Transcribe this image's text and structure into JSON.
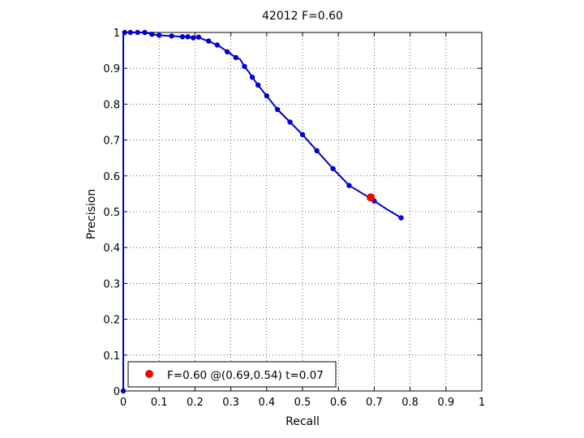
{
  "chart_data": {
    "type": "line",
    "title": "42012 F=0.60",
    "xlabel": "Recall",
    "ylabel": "Precision",
    "xlim": [
      0,
      1
    ],
    "ylim": [
      0,
      1
    ],
    "grid": true,
    "legend_placement": "bottom-left",
    "x_ticks": [
      "0",
      "0.1",
      "0.2",
      "0.3",
      "0.4",
      "0.5",
      "0.6",
      "0.7",
      "0.8",
      "0.9",
      "1"
    ],
    "y_ticks": [
      "0",
      "0.1",
      "0.2",
      "0.3",
      "0.4",
      "0.5",
      "0.6",
      "0.7",
      "0.8",
      "0.9",
      "1"
    ],
    "series": [
      {
        "color": "#0000cc",
        "points": [
          [
            0.0,
            0.0
          ],
          [
            0.0,
            1.0
          ],
          [
            0.004,
            1.0
          ],
          [
            0.01,
            1.0
          ],
          [
            0.02,
            1.0
          ],
          [
            0.04,
            1.0
          ],
          [
            0.06,
            1.0
          ],
          [
            0.08,
            0.995
          ],
          [
            0.1,
            0.992
          ],
          [
            0.135,
            0.99
          ],
          [
            0.165,
            0.988
          ],
          [
            0.18,
            0.988
          ],
          [
            0.195,
            0.985
          ],
          [
            0.21,
            0.987
          ],
          [
            0.225,
            0.98
          ],
          [
            0.238,
            0.976
          ],
          [
            0.25,
            0.97
          ],
          [
            0.262,
            0.965
          ],
          [
            0.278,
            0.955
          ],
          [
            0.29,
            0.946
          ],
          [
            0.3,
            0.94
          ],
          [
            0.314,
            0.93
          ],
          [
            0.326,
            0.925
          ],
          [
            0.338,
            0.905
          ],
          [
            0.35,
            0.89
          ],
          [
            0.36,
            0.875
          ],
          [
            0.376,
            0.853
          ],
          [
            0.4,
            0.823
          ],
          [
            0.43,
            0.785
          ],
          [
            0.465,
            0.75
          ],
          [
            0.5,
            0.715
          ],
          [
            0.54,
            0.67
          ],
          [
            0.585,
            0.62
          ],
          [
            0.63,
            0.573
          ],
          [
            0.685,
            0.54
          ],
          [
            0.7,
            0.53
          ],
          [
            0.73,
            0.51
          ],
          [
            0.775,
            0.483
          ]
        ],
        "markers": [
          [
            0.0,
            0.0
          ],
          [
            0.004,
            1.0
          ],
          [
            0.02,
            1.0
          ],
          [
            0.04,
            1.0
          ],
          [
            0.06,
            1.0
          ],
          [
            0.08,
            0.995
          ],
          [
            0.1,
            0.992
          ],
          [
            0.135,
            0.99
          ],
          [
            0.165,
            0.988
          ],
          [
            0.18,
            0.988
          ],
          [
            0.195,
            0.985
          ],
          [
            0.21,
            0.987
          ],
          [
            0.238,
            0.976
          ],
          [
            0.262,
            0.965
          ],
          [
            0.29,
            0.946
          ],
          [
            0.314,
            0.93
          ],
          [
            0.338,
            0.905
          ],
          [
            0.36,
            0.875
          ],
          [
            0.376,
            0.853
          ],
          [
            0.4,
            0.823
          ],
          [
            0.43,
            0.785
          ],
          [
            0.465,
            0.75
          ],
          [
            0.5,
            0.715
          ],
          [
            0.54,
            0.67
          ],
          [
            0.585,
            0.62
          ],
          [
            0.63,
            0.573
          ],
          [
            0.7,
            0.53
          ],
          [
            0.775,
            0.483
          ]
        ]
      }
    ],
    "highlight_point": {
      "x": 0.69,
      "y": 0.54,
      "color": "#ff0000"
    },
    "legend": {
      "entries": [
        {
          "label": "F=0.60 @(0.69,0.54) t=0.07",
          "color": "#ff0000"
        }
      ]
    }
  }
}
